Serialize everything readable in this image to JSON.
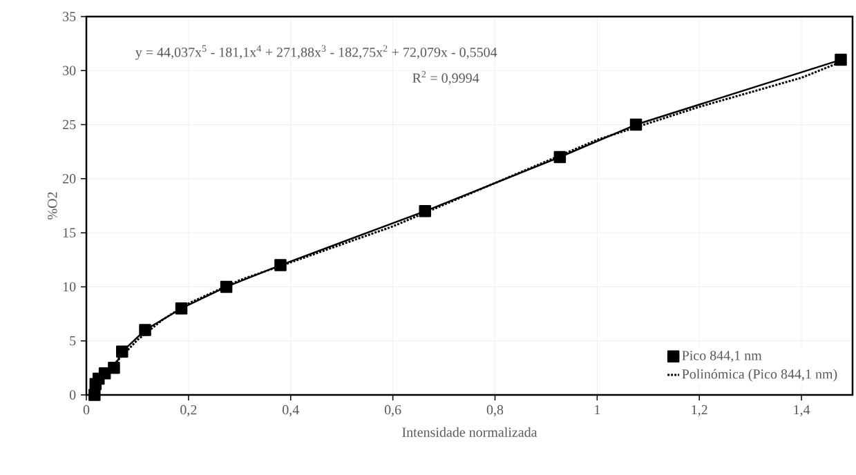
{
  "chart_data": {
    "type": "line",
    "xlabel": "Intensidade normalizada",
    "ylabel": "%O2",
    "xlim": [
      0,
      1.5
    ],
    "ylim": [
      0,
      35
    ],
    "xticks": [
      0,
      {
        "value": 0.2,
        "label": "0,2"
      },
      {
        "value": 0.4,
        "label": "0,4"
      },
      {
        "value": 0.6,
        "label": "0,6"
      },
      {
        "value": 0.8,
        "label": "0,8"
      },
      1,
      {
        "value": 1.2,
        "label": "1,2"
      },
      {
        "value": 1.4,
        "label": "1,4"
      }
    ],
    "yticks": [
      0,
      5,
      10,
      15,
      20,
      25,
      30,
      35
    ],
    "grid": true,
    "legend": "bottom right",
    "annotations": [
      "y = 44,037x$^{5}$ - 181,1x$^{4}$ + 271,88x$^{3}$ - 182,75x$^{2}$ + 72,079x - 0,5504",
      "R$^{2}$ = 0,9994"
    ],
    "series": [
      {
        "name": "Pico 844,1 nm",
        "color": "#000000",
        "marker": "square",
        "line_style": "solid",
        "x": [
          0.016,
          0.018,
          0.024,
          0.036,
          0.054,
          0.07,
          0.115,
          0.186,
          0.274,
          0.38,
          0.663,
          0.927,
          1.076,
          1.477
        ],
        "values": [
          0,
          1,
          1.5,
          2,
          2.5,
          4,
          6,
          8,
          10,
          12,
          17,
          22,
          25,
          31
        ]
      },
      {
        "name": "Polinómica (Pico 844,1 nm)",
        "color": "#000000",
        "marker": "none",
        "line_style": "dotted",
        "x": [
          0.008,
          0.02,
          0.05,
          0.1,
          0.15,
          0.2,
          0.3,
          0.4,
          0.6,
          0.8,
          1.0,
          1.2,
          1.4,
          1.477
        ],
        "values": [
          0,
          0.82,
          2.63,
          5.08,
          6.98,
          8.46,
          10.61,
          12.26,
          15.59,
          19.6,
          23.6,
          26.65,
          29.34,
          30.8
        ]
      }
    ]
  }
}
